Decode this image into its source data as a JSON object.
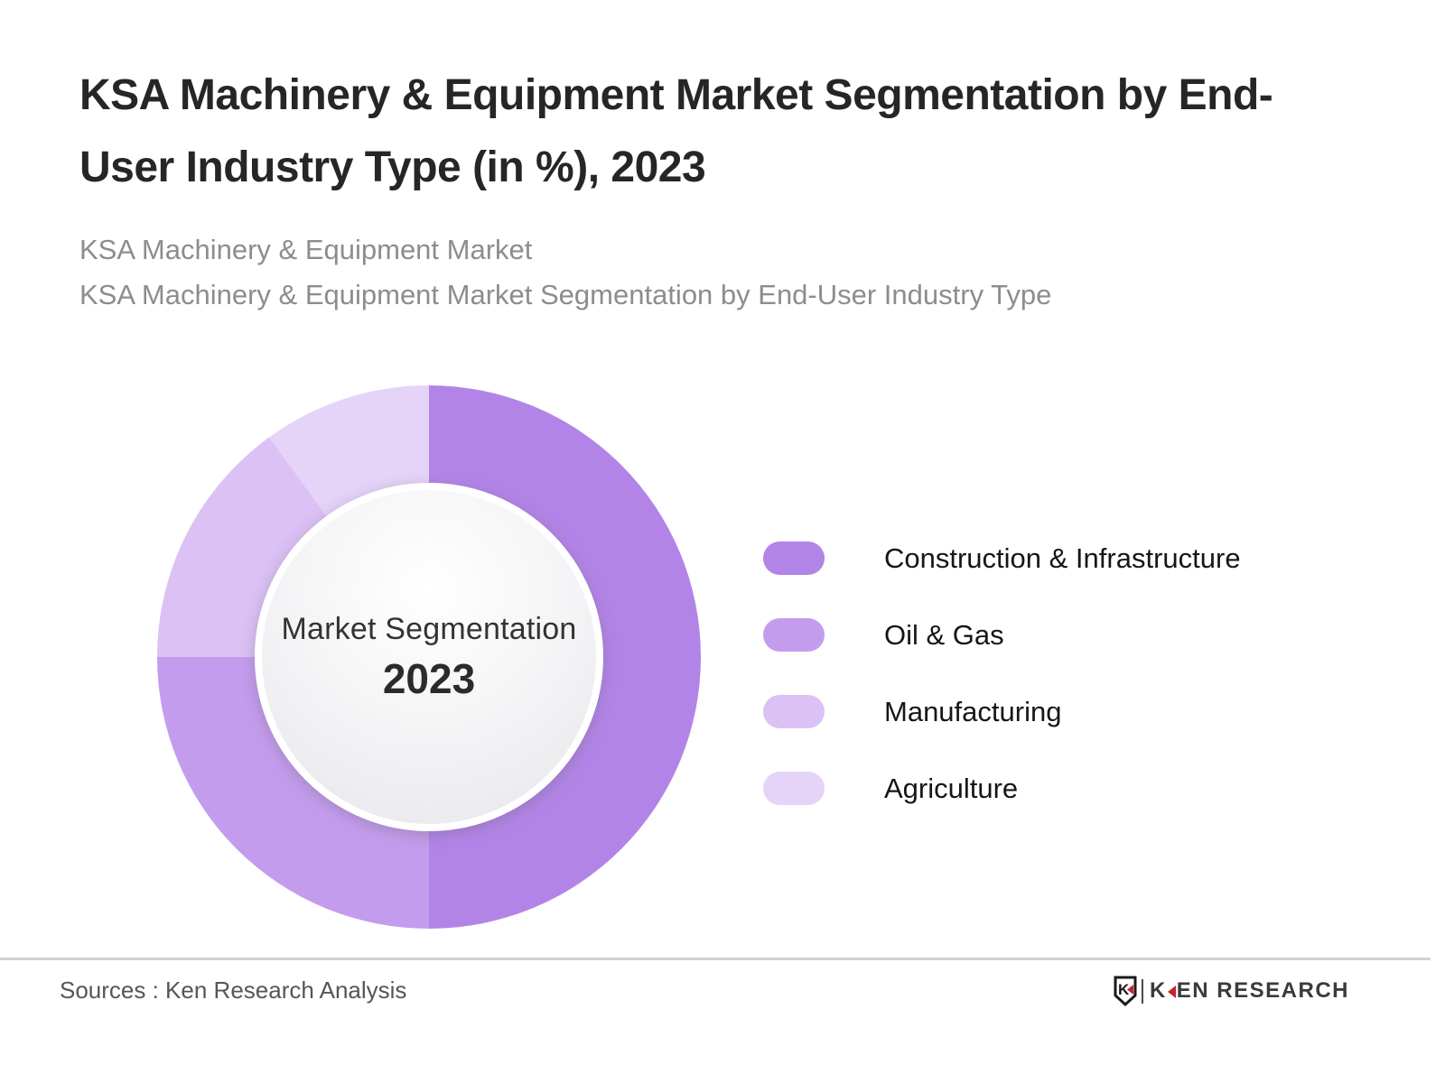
{
  "header": {
    "title_lines": [
      "KSA Machinery & Equipment Market Segmentation by End-",
      "User Industry Type (in %), 2023"
    ],
    "subtitle_lines": [
      "KSA Machinery & Equipment Market",
      "KSA Machinery & Equipment Market Segmentation by End-User Industry Type"
    ]
  },
  "chart_data": {
    "type": "pie",
    "variant": "donut",
    "title": "KSA Machinery & Equipment Market Segmentation by End-User Industry Type (in %), 2023",
    "unit": "%",
    "start_angle_deg": 0,
    "direction": "clockwise",
    "center_label": "Market Segmentation",
    "center_year": "2023",
    "legend_position": "right",
    "segments": [
      {
        "label": "Construction & Infrastructure",
        "value": 50,
        "color": "#b384e7"
      },
      {
        "label": "Oil & Gas",
        "value": 25,
        "color": "#c49ced"
      },
      {
        "label": "Manufacturing",
        "value": 15,
        "color": "#dbc1f4"
      },
      {
        "label": "Agriculture",
        "value": 10,
        "color": "#e6d3f8"
      }
    ]
  },
  "footer": {
    "source_text": "Sources : Ken Research Analysis",
    "logo": {
      "shield_letter": "K",
      "wordmark_k": "K",
      "wordmark_rest": "EN RESEARCH",
      "accent_color": "#c8242c"
    }
  }
}
